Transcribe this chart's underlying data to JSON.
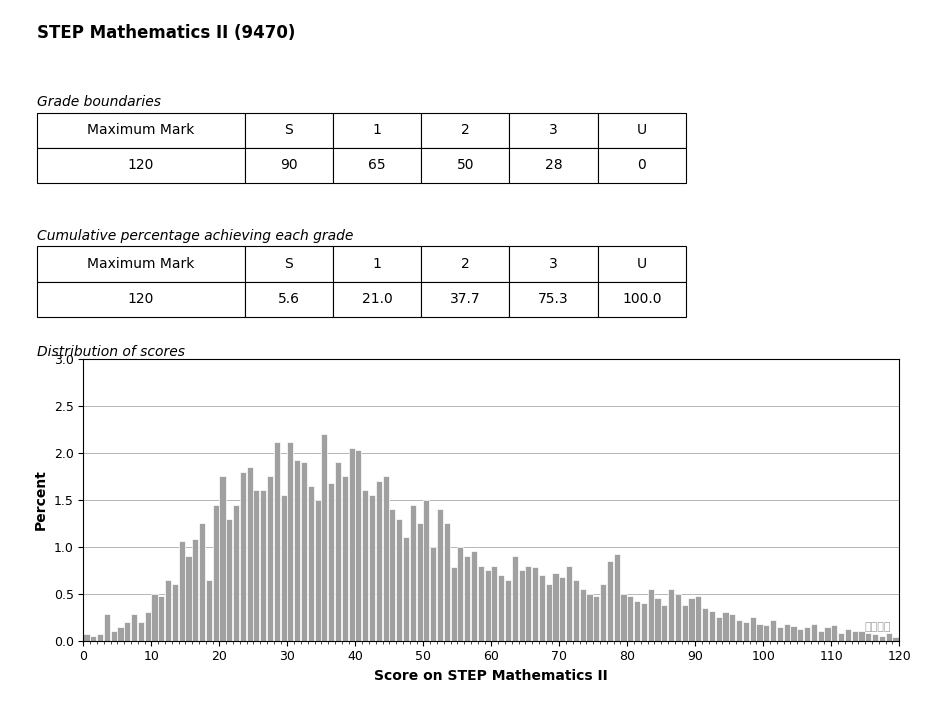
{
  "title": "STEP Mathematics II (9470)",
  "table1_title": "Grade boundaries",
  "table1_headers": [
    "Maximum Mark",
    "S",
    "1",
    "2",
    "3",
    "U"
  ],
  "table1_row": [
    "120",
    "90",
    "65",
    "50",
    "28",
    "0"
  ],
  "table2_title": "Cumulative percentage achieving each grade",
  "table2_headers": [
    "Maximum Mark",
    "S",
    "1",
    "2",
    "3",
    "U"
  ],
  "table2_row": [
    "120",
    "5.6",
    "21.0",
    "37.7",
    "75.3",
    "100.0"
  ],
  "hist_title": "Distribution of scores",
  "hist_xlabel": "Score on STEP Mathematics II",
  "hist_ylabel": "Percent",
  "hist_xlim": [
    0,
    120
  ],
  "hist_ylim": [
    0,
    3.0
  ],
  "hist_yticks": [
    0.0,
    0.5,
    1.0,
    1.5,
    2.0,
    2.5,
    3.0
  ],
  "hist_xticks": [
    0,
    10,
    20,
    30,
    40,
    50,
    60,
    70,
    80,
    90,
    100,
    110,
    120
  ],
  "bar_color": "#a0a0a0",
  "bar_edgecolor": "#ffffff",
  "hist_values": [
    0.07,
    0.05,
    0.07,
    0.28,
    0.1,
    0.15,
    0.2,
    0.28,
    0.2,
    0.3,
    0.5,
    0.48,
    0.65,
    0.6,
    1.06,
    0.9,
    1.08,
    1.25,
    0.65,
    1.45,
    1.75,
    1.3,
    1.45,
    1.8,
    1.85,
    1.6,
    1.6,
    1.75,
    2.12,
    1.55,
    2.12,
    1.92,
    1.9,
    1.65,
    1.5,
    2.2,
    1.68,
    1.9,
    1.75,
    2.05,
    2.03,
    1.6,
    1.55,
    1.7,
    1.75,
    1.4,
    1.3,
    1.1,
    1.45,
    1.25,
    1.5,
    1.0,
    1.4,
    1.25,
    0.78,
    1.0,
    0.9,
    0.95,
    0.8,
    0.75,
    0.8,
    0.7,
    0.65,
    0.9,
    0.75,
    0.8,
    0.78,
    0.7,
    0.6,
    0.72,
    0.68,
    0.8,
    0.65,
    0.55,
    0.5,
    0.48,
    0.6,
    0.85,
    0.92,
    0.5,
    0.48,
    0.42,
    0.4,
    0.55,
    0.45,
    0.38,
    0.55,
    0.5,
    0.38,
    0.45,
    0.48,
    0.35,
    0.32,
    0.25,
    0.3,
    0.28,
    0.22,
    0.2,
    0.25,
    0.18,
    0.17,
    0.22,
    0.15,
    0.18,
    0.16,
    0.12,
    0.14,
    0.18,
    0.1,
    0.15,
    0.17,
    0.08,
    0.12,
    0.1,
    0.1,
    0.08,
    0.07,
    0.05,
    0.08,
    0.04
  ],
  "background_color": "#ffffff",
  "grid_color": "#aaaaaa",
  "title_fontsize": 12,
  "label_fontsize": 10,
  "tick_fontsize": 9,
  "table_fontsize": 10
}
